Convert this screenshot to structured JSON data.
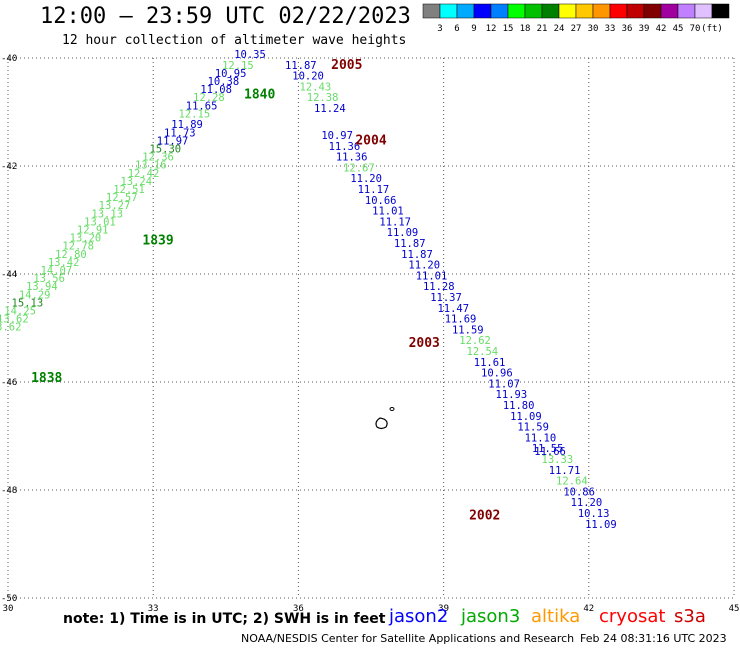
{
  "header": {
    "title": "12:00 — 23:59 UTC 02/22/2023",
    "subtitle": "12 hour collection of altimeter wave heights"
  },
  "legend": {
    "colors": [
      "#808080",
      "#00ffff",
      "#00aaff",
      "#0000ff",
      "#0080ff",
      "#00ff00",
      "#00c000",
      "#008000",
      "#ffff00",
      "#ffc800",
      "#ff9600",
      "#ff0000",
      "#c00000",
      "#800000",
      "#a000a0",
      "#c080ff",
      "#e0c0ff",
      "#000000"
    ],
    "labels": [
      "3",
      "6",
      "9",
      "12",
      "15",
      "18",
      "21",
      "24",
      "27",
      "30",
      "33",
      "36",
      "39",
      "42",
      "45",
      "70",
      "(ft)"
    ]
  },
  "axes": {
    "x_ticks": [
      "30",
      "33",
      "36",
      "39",
      "42",
      "45"
    ],
    "y_ticks": [
      "-40",
      "-42",
      "-44",
      "-46",
      "-48",
      "-50"
    ]
  },
  "chart_data": {
    "type": "scatter",
    "xlim": [
      30,
      45
    ],
    "ylim": [
      -50,
      -40
    ],
    "grid": true,
    "tracks": [
      {
        "satellite": "jason3",
        "time_labels": [
          {
            "text": "1840",
            "lon": 35.2,
            "lat": -40.75
          },
          {
            "text": "1839",
            "lon": 33.1,
            "lat": -43.45
          },
          {
            "text": "1838",
            "lon": 30.8,
            "lat": -46.0
          }
        ],
        "points": [
          {
            "lon": 35.0,
            "lat": -40.0,
            "swh": "10.35",
            "color": "#0000cc"
          },
          {
            "lon": 34.75,
            "lat": -40.2,
            "swh": "12.15",
            "color": "#66dd66"
          },
          {
            "lon": 34.6,
            "lat": -40.35,
            "swh": "10.95",
            "color": "#0000cc"
          },
          {
            "lon": 34.45,
            "lat": -40.5,
            "swh": "10.38",
            "color": "#0000cc"
          },
          {
            "lon": 34.3,
            "lat": -40.65,
            "swh": "11.08",
            "color": "#0000cc"
          },
          {
            "lon": 34.15,
            "lat": -40.8,
            "swh": "12.28",
            "color": "#66dd66"
          },
          {
            "lon": 34.0,
            "lat": -40.95,
            "swh": "11.65",
            "color": "#0000cc"
          },
          {
            "lon": 33.85,
            "lat": -41.1,
            "swh": "12.15",
            "color": "#66dd66"
          },
          {
            "lon": 33.7,
            "lat": -41.3,
            "swh": "11.89",
            "color": "#0000cc"
          },
          {
            "lon": 33.55,
            "lat": -41.45,
            "swh": "11.73",
            "color": "#0000cc"
          },
          {
            "lon": 33.4,
            "lat": -41.6,
            "swh": "11.97",
            "color": "#0000cc"
          },
          {
            "lon": 33.25,
            "lat": -41.75,
            "swh": "15.30",
            "color": "#228822"
          },
          {
            "lon": 33.1,
            "lat": -41.9,
            "swh": "12.36",
            "color": "#66dd66"
          },
          {
            "lon": 32.95,
            "lat": -42.05,
            "swh": "13.16",
            "color": "#66dd66"
          },
          {
            "lon": 32.8,
            "lat": -42.2,
            "swh": "12.42",
            "color": "#66dd66"
          },
          {
            "lon": 32.65,
            "lat": -42.35,
            "swh": "13.24",
            "color": "#66dd66"
          },
          {
            "lon": 32.5,
            "lat": -42.5,
            "swh": "12.51",
            "color": "#66dd66"
          },
          {
            "lon": 32.35,
            "lat": -42.65,
            "swh": "12.57",
            "color": "#66dd66"
          },
          {
            "lon": 32.2,
            "lat": -42.8,
            "swh": "13.27",
            "color": "#66dd66"
          },
          {
            "lon": 32.05,
            "lat": -42.95,
            "swh": "13.13",
            "color": "#66dd66"
          },
          {
            "lon": 31.9,
            "lat": -43.1,
            "swh": "13.01",
            "color": "#66dd66"
          },
          {
            "lon": 31.75,
            "lat": -43.25,
            "swh": "12.91",
            "color": "#66dd66"
          },
          {
            "lon": 31.6,
            "lat": -43.4,
            "swh": "13.20",
            "color": "#66dd66"
          },
          {
            "lon": 31.45,
            "lat": -43.55,
            "swh": "12.78",
            "color": "#66dd66"
          },
          {
            "lon": 31.3,
            "lat": -43.7,
            "swh": "12.80",
            "color": "#66dd66"
          },
          {
            "lon": 31.15,
            "lat": -43.85,
            "swh": "13.42",
            "color": "#66dd66"
          },
          {
            "lon": 31.0,
            "lat": -44.0,
            "swh": "14.07",
            "color": "#66dd66"
          },
          {
            "lon": 30.85,
            "lat": -44.15,
            "swh": "13.56",
            "color": "#66dd66"
          },
          {
            "lon": 30.7,
            "lat": -44.3,
            "swh": "13.94",
            "color": "#66dd66"
          },
          {
            "lon": 30.55,
            "lat": -44.45,
            "swh": "14.29",
            "color": "#66dd66"
          },
          {
            "lon": 30.4,
            "lat": -44.6,
            "swh": "15.13",
            "color": "#228822"
          },
          {
            "lon": 30.25,
            "lat": -44.75,
            "swh": "14.25",
            "color": "#66dd66"
          },
          {
            "lon": 30.1,
            "lat": -44.9,
            "swh": "13.62",
            "color": "#66dd66"
          },
          {
            "lon": 29.95,
            "lat": -45.05,
            "swh": "13.62",
            "color": "#66dd66"
          }
        ]
      },
      {
        "satellite": "jason2",
        "time_labels": [
          {
            "text": "2005",
            "lon": 37.0,
            "lat": -40.2
          },
          {
            "text": "2004",
            "lon": 37.5,
            "lat": -41.6
          },
          {
            "text": "2003",
            "lon": 38.6,
            "lat": -45.35
          },
          {
            "text": "2002",
            "lon": 39.85,
            "lat": -48.55
          }
        ],
        "points": [
          {
            "lon": 36.05,
            "lat": -40.2,
            "swh": "11.87",
            "color": "#0000cc"
          },
          {
            "lon": 36.2,
            "lat": -40.4,
            "swh": "10.20",
            "color": "#0000cc"
          },
          {
            "lon": 36.35,
            "lat": -40.6,
            "swh": "12.43",
            "color": "#66dd66"
          },
          {
            "lon": 36.5,
            "lat": -40.8,
            "swh": "12.38",
            "color": "#66dd66"
          },
          {
            "lon": 36.65,
            "lat": -41.0,
            "swh": "11.24",
            "color": "#0000cc"
          },
          {
            "lon": 36.8,
            "lat": -41.5,
            "swh": "10.97",
            "color": "#0000cc"
          },
          {
            "lon": 36.95,
            "lat": -41.7,
            "swh": "11.36",
            "color": "#0000cc"
          },
          {
            "lon": 37.1,
            "lat": -41.9,
            "swh": "11.36",
            "color": "#0000cc"
          },
          {
            "lon": 37.25,
            "lat": -42.1,
            "swh": "12.67",
            "color": "#66dd66"
          },
          {
            "lon": 37.4,
            "lat": -42.3,
            "swh": "11.20",
            "color": "#0000cc"
          },
          {
            "lon": 37.55,
            "lat": -42.5,
            "swh": "11.17",
            "color": "#0000cc"
          },
          {
            "lon": 37.7,
            "lat": -42.7,
            "swh": "10.66",
            "color": "#0000cc"
          },
          {
            "lon": 37.85,
            "lat": -42.9,
            "swh": "11.01",
            "color": "#0000cc"
          },
          {
            "lon": 38.0,
            "lat": -43.1,
            "swh": "11.17",
            "color": "#0000cc"
          },
          {
            "lon": 38.15,
            "lat": -43.3,
            "swh": "11.09",
            "color": "#0000cc"
          },
          {
            "lon": 38.3,
            "lat": -43.5,
            "swh": "11.87",
            "color": "#0000cc"
          },
          {
            "lon": 38.45,
            "lat": -43.7,
            "swh": "11.87",
            "color": "#0000cc"
          },
          {
            "lon": 38.6,
            "lat": -43.9,
            "swh": "11.20",
            "color": "#0000cc"
          },
          {
            "lon": 38.75,
            "lat": -44.1,
            "swh": "11.01",
            "color": "#0000cc"
          },
          {
            "lon": 38.9,
            "lat": -44.3,
            "swh": "11.28",
            "color": "#0000cc"
          },
          {
            "lon": 39.05,
            "lat": -44.5,
            "swh": "11.37",
            "color": "#0000cc"
          },
          {
            "lon": 39.2,
            "lat": -44.7,
            "swh": "11.47",
            "color": "#0000cc"
          },
          {
            "lon": 39.35,
            "lat": -44.9,
            "swh": "11.69",
            "color": "#0000cc"
          },
          {
            "lon": 39.5,
            "lat": -45.1,
            "swh": "11.59",
            "color": "#0000cc"
          },
          {
            "lon": 39.65,
            "lat": -45.3,
            "swh": "12.62",
            "color": "#66dd66"
          },
          {
            "lon": 39.8,
            "lat": -45.5,
            "swh": "12.54",
            "color": "#66dd66"
          },
          {
            "lon": 39.95,
            "lat": -45.7,
            "swh": "11.61",
            "color": "#0000cc"
          },
          {
            "lon": 40.1,
            "lat": -45.9,
            "swh": "10.96",
            "color": "#0000cc"
          },
          {
            "lon": 40.25,
            "lat": -46.1,
            "swh": "11.07",
            "color": "#0000cc"
          },
          {
            "lon": 40.4,
            "lat": -46.3,
            "swh": "11.93",
            "color": "#0000cc"
          },
          {
            "lon": 40.55,
            "lat": -46.5,
            "swh": "11.80",
            "color": "#0000cc"
          },
          {
            "lon": 40.7,
            "lat": -46.7,
            "swh": "11.09",
            "color": "#0000cc"
          },
          {
            "lon": 40.85,
            "lat": -46.9,
            "swh": "11.59",
            "color": "#0000cc"
          },
          {
            "lon": 41.0,
            "lat": -47.1,
            "swh": "11.10",
            "color": "#0000cc"
          },
          {
            "lon": 41.15,
            "lat": -47.3,
            "swh": "11.55",
            "color": "#0000cc"
          },
          {
            "lon": 41.2,
            "lat": -47.35,
            "swh": "11.66",
            "color": "#0000cc"
          },
          {
            "lon": 41.35,
            "lat": -47.5,
            "swh": "13.33",
            "color": "#66dd66"
          },
          {
            "lon": 41.5,
            "lat": -47.7,
            "swh": "11.71",
            "color": "#0000cc"
          },
          {
            "lon": 41.65,
            "lat": -47.9,
            "swh": "12.64",
            "color": "#66dd66"
          },
          {
            "lon": 41.8,
            "lat": -48.1,
            "swh": "10.86",
            "color": "#0000cc"
          },
          {
            "lon": 41.95,
            "lat": -48.3,
            "swh": "11.20",
            "color": "#0000cc"
          },
          {
            "lon": 42.1,
            "lat": -48.5,
            "swh": "10.13",
            "color": "#0000cc"
          },
          {
            "lon": 42.25,
            "lat": -48.7,
            "swh": "11.09",
            "color": "#0000cc"
          }
        ]
      }
    ]
  },
  "footer": {
    "note": "note:  1) Time is in UTC;  2) SWH is in feet",
    "credit": "NOAA/NESDIS Center for Satellite Applications and Research",
    "timestamp": "Feb 24 08:31:16 UTC 2023",
    "satellites": [
      {
        "name": "jason2",
        "color": "#0000ff"
      },
      {
        "name": "jason3",
        "color": "#00aa00"
      },
      {
        "name": "altika",
        "color": "#ff9900"
      },
      {
        "name": "cryosat",
        "color": "#ff0000"
      },
      {
        "name": "s3a",
        "color": "#cc0000"
      }
    ]
  }
}
